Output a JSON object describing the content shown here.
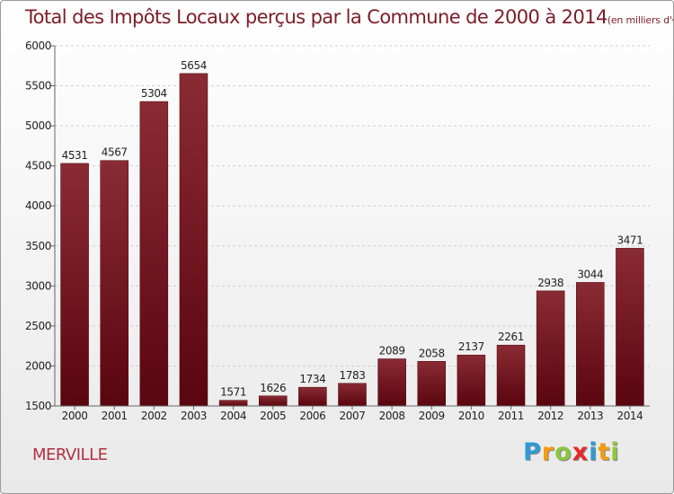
{
  "page_title": "Total des Impôts Locaux perçus par la Commune de 2000 à 2014",
  "unit_label": "(en milliers d'€)",
  "commune": "MERVILLE",
  "brand": {
    "letters": [
      "P",
      "r",
      "o",
      "x",
      "i",
      "t",
      "i"
    ],
    "colors": [
      "#2e9bd6",
      "#f39c12",
      "#8cc63f",
      "#e8292b",
      "#2e9bd6",
      "#f39c12",
      "#8cc63f"
    ]
  },
  "colors": {
    "bar_top": "#8a2b34",
    "bar_bottom": "#5a050f",
    "title": "#7b1d27",
    "commune": "#b03040"
  },
  "chart_data": {
    "type": "bar",
    "categories": [
      "2000",
      "2001",
      "2002",
      "2003",
      "2004",
      "2005",
      "2006",
      "2007",
      "2008",
      "2009",
      "2010",
      "2011",
      "2012",
      "2013",
      "2014"
    ],
    "values": [
      4531,
      4567,
      5304,
      5654,
      1571,
      1626,
      1734,
      1783,
      2089,
      2058,
      2137,
      2261,
      2938,
      3044,
      3471
    ],
    "yticks": [
      1500,
      2000,
      2500,
      3000,
      3500,
      4000,
      4500,
      5000,
      5500,
      6000
    ],
    "ylim": [
      1500,
      6000
    ],
    "grid": true
  }
}
